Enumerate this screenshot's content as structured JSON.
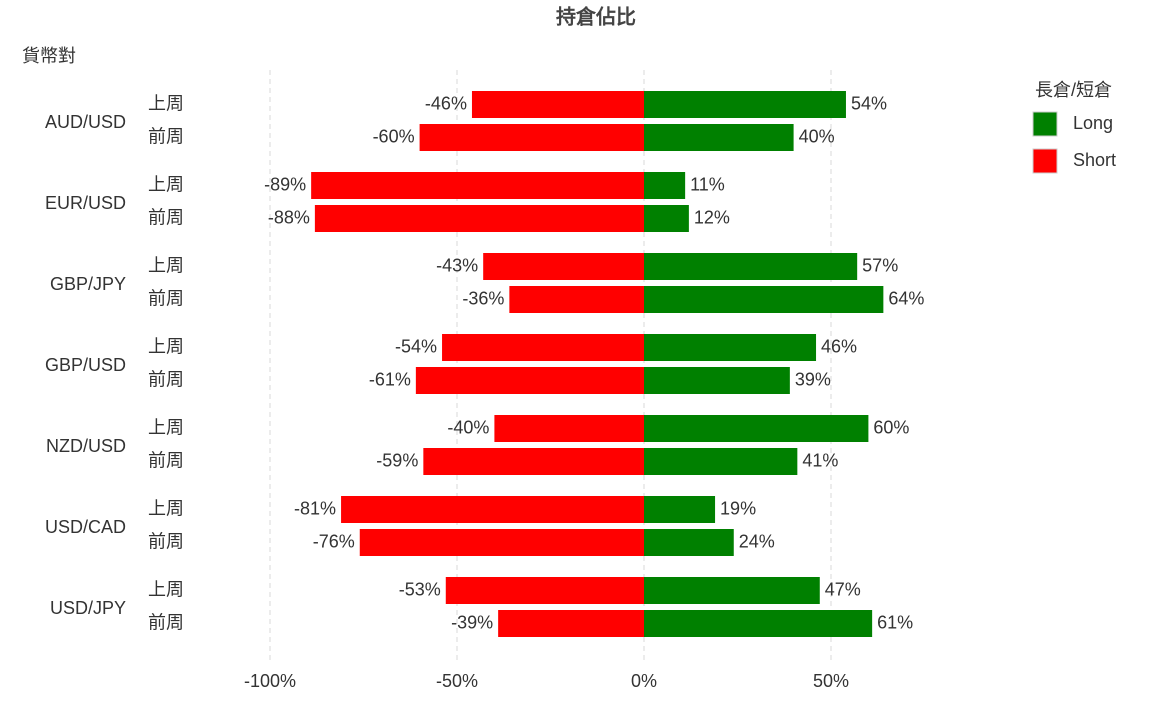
{
  "chart_data": {
    "type": "bar",
    "orientation": "horizontal",
    "title": "持倉佔比",
    "y_label": "貨幣對",
    "categories": [
      "AUD/USD",
      "EUR/USD",
      "GBP/JPY",
      "GBP/USD",
      "NZD/USD",
      "USD/CAD",
      "USD/JPY"
    ],
    "periods": [
      "上周",
      "前周"
    ],
    "legend_title": "長倉/短倉",
    "series": [
      {
        "name": "Long",
        "color": "#008000",
        "values": [
          [
            54,
            40
          ],
          [
            11,
            12
          ],
          [
            57,
            64
          ],
          [
            46,
            39
          ],
          [
            60,
            41
          ],
          [
            19,
            24
          ],
          [
            47,
            61
          ]
        ],
        "value_labels": [
          [
            "54%",
            "40%"
          ],
          [
            "11%",
            "12%"
          ],
          [
            "57%",
            "64%"
          ],
          [
            "46%",
            "39%"
          ],
          [
            "60%",
            "41%"
          ],
          [
            "19%",
            "24%"
          ],
          [
            "47%",
            "61%"
          ]
        ]
      },
      {
        "name": "Short",
        "color": "#ff0000",
        "values": [
          [
            -46,
            -60
          ],
          [
            -89,
            -88
          ],
          [
            -43,
            -36
          ],
          [
            -54,
            -61
          ],
          [
            -40,
            -59
          ],
          [
            -81,
            -76
          ],
          [
            -53,
            -39
          ]
        ],
        "value_labels": [
          [
            "-46%",
            "-60%"
          ],
          [
            "-89%",
            "-88%"
          ],
          [
            "-43%",
            "-36%"
          ],
          [
            "-54%",
            "-61%"
          ],
          [
            "-40%",
            "-59%"
          ],
          [
            "-81%",
            "-76%"
          ],
          [
            "-53%",
            "-39%"
          ]
        ]
      }
    ],
    "xlim": [
      -110,
      70
    ],
    "xticks": [
      {
        "value": -100,
        "label": "-100%"
      },
      {
        "value": -50,
        "label": "-50%"
      },
      {
        "value": 0,
        "label": "0%"
      },
      {
        "value": 50,
        "label": "50%"
      }
    ],
    "grid": true
  }
}
